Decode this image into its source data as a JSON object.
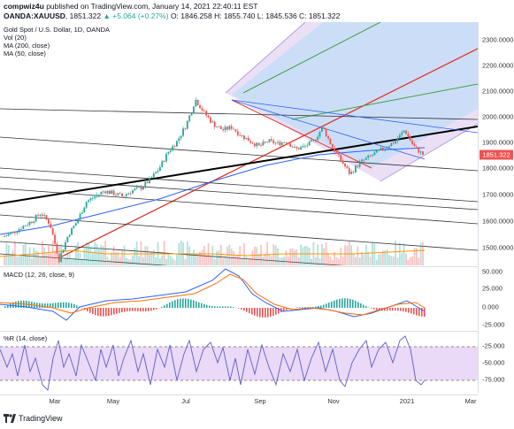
{
  "header": {
    "author": "compwiz4u",
    "published": "published on TradingView.com, January 14, 2021 22:40:11 EST",
    "symbol": "OANDA:XAUUSD",
    "last": "1851.322",
    "change": "▲ +5.064 (+0.27%)",
    "ohlc": "O: 1846.258 H: 1855.740 L: 1845.536 C: 1851.322"
  },
  "main_legend": {
    "title": "Gold Spot / U.S. Dollar, 1D, OANDA",
    "vol": "Vol (20)",
    "ma200": "MA (200, close)",
    "ma50": "MA (50, close)"
  },
  "macd_legend": "MACD (12, 26, close, 9)",
  "wr_legend": "%R (14, close)",
  "price_axis": [
    "2300.0000",
    "2200.0000",
    "2100.0000",
    "2000.0000",
    "1900.0000",
    "1800.0000",
    "1700.0000",
    "1600.0000",
    "1500.0000"
  ],
  "price_last_tag": "1851.322",
  "macd_axis": [
    "50.000",
    "25.000",
    "0.000",
    "-25.000"
  ],
  "wr_axis": [
    "-25.000",
    "-50.000",
    "-75.000"
  ],
  "x_labels": [
    "Mar",
    "May",
    "Jul",
    "Sep",
    "Nov",
    "2021",
    "Mar"
  ],
  "footer": {
    "brand": "TradingView"
  },
  "colors": {
    "up": "#26a69a",
    "down": "#ef5350",
    "ma200": "#2962ff",
    "ma50": "#ff9800",
    "pitch_red": "#e0392b",
    "pitch_green": "#43a047",
    "pitch_purple": "#b39ddb",
    "pitch_blue_fill": "#c9def7",
    "pitch_purple_fill": "#e7d9f5",
    "wr_fill": "#ead9f7"
  },
  "chart_data": [
    {
      "type": "candlestick",
      "title": "Gold Spot / U.S. Dollar, 1D, OANDA",
      "ylim": [
        1450,
        2330
      ],
      "x_range": [
        "Feb 2020",
        "Mar 2021"
      ],
      "series": [
        {
          "name": "MA (200, close)"
        },
        {
          "name": "MA (50, close)"
        }
      ],
      "closes_approx": [
        1555,
        1570,
        1590,
        1610,
        1640,
        1600,
        1470,
        1560,
        1610,
        1680,
        1700,
        1720,
        1710,
        1700,
        1720,
        1730,
        1760,
        1800,
        1860,
        1900,
        1960,
        2050,
        2000,
        1960,
        1940,
        1950,
        1920,
        1900,
        1880,
        1900,
        1890,
        1900,
        1870,
        1880,
        1900,
        1950,
        1880,
        1830,
        1780,
        1820,
        1840,
        1860,
        1880,
        1900,
        1940,
        1880,
        1851.322
      ],
      "last": 1851.322
    },
    {
      "type": "line",
      "title": "MACD (12, 26, close, 9)",
      "ylim": [
        -30,
        55
      ]
    },
    {
      "type": "line",
      "title": "%R (14, close)",
      "ylim": [
        -100,
        0
      ],
      "levels": [
        -20,
        -80
      ]
    }
  ]
}
